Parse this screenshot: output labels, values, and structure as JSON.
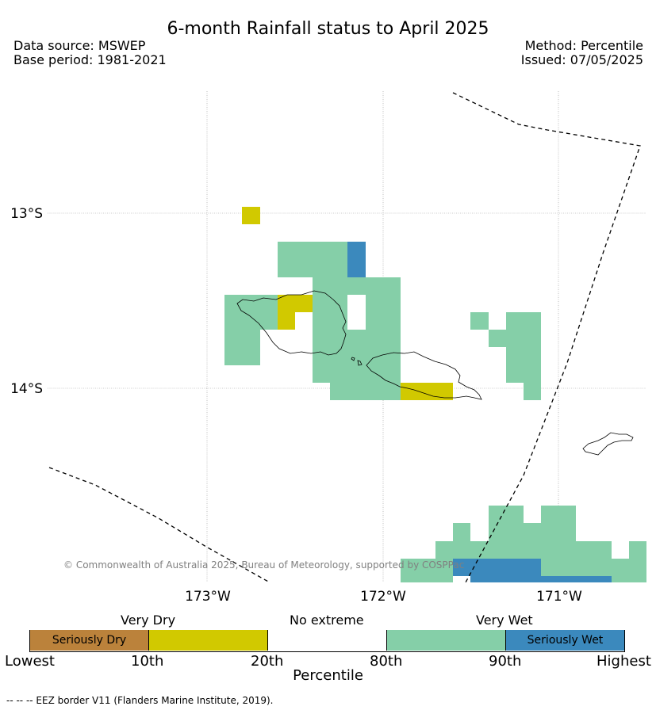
{
  "header": {
    "title": "6-month Rainfall status to April 2025",
    "source": "Data source: MSWEP",
    "base_period": "Base period: 1981-2021",
    "method": "Method: Percentile",
    "issued": "Issued: 07/05/2025"
  },
  "map": {
    "lat_labels": [
      "13°S",
      "14°S"
    ],
    "lon_labels": [
      "173°W",
      "172°W",
      "171°W"
    ],
    "copyright": "© Commonwealth of Australia 2025, Bureau of Meteorology, supported by COSPPac",
    "colors": {
      "very_wet": "#85cfa8",
      "seriously_wet": "#3b89bd",
      "very_dry": "#d1c900",
      "seriously_dry": "#bb823b"
    }
  },
  "legend": {
    "categories": [
      "Very Dry",
      "No extreme",
      "Very Wet"
    ],
    "segments": [
      "Seriously Dry",
      "",
      "",
      "",
      "Seriously Wet"
    ],
    "ticks": [
      "Lowest",
      "10th",
      "20th",
      "80th",
      "90th",
      "Highest"
    ],
    "axis_title": "Percentile"
  },
  "footer": {
    "eez_note": "--  --  -- EEZ border V11 (Flanders Marine Institute, 2019)."
  }
}
